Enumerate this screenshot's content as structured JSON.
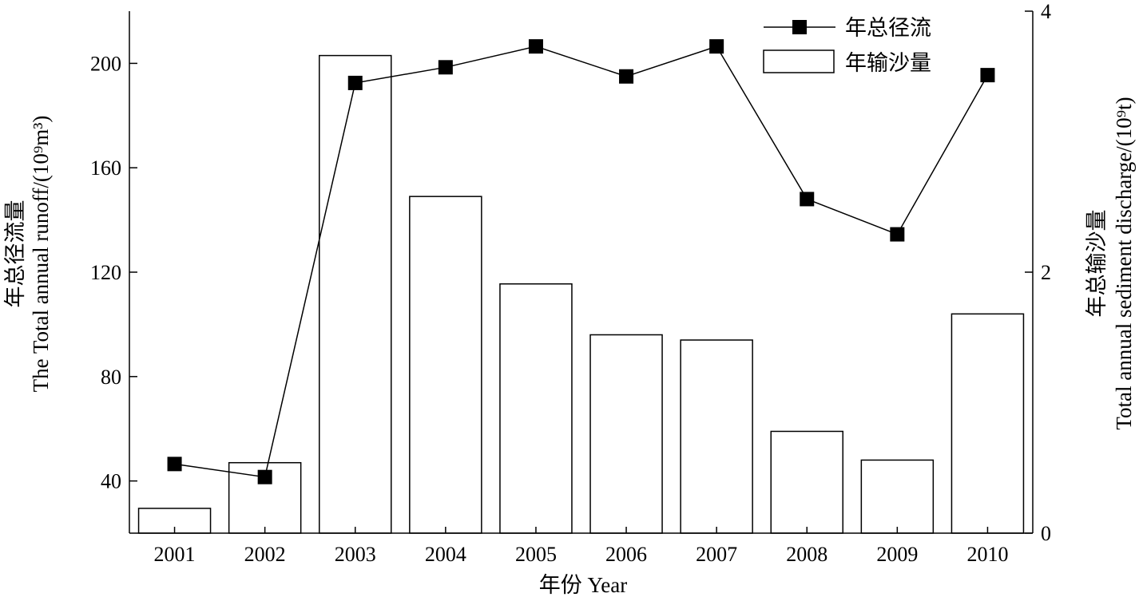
{
  "chart_data": {
    "type": "bar",
    "categories": [
      "2001",
      "2002",
      "2003",
      "2004",
      "2005",
      "2006",
      "2007",
      "2008",
      "2009",
      "2010"
    ],
    "xlabel": "年份 Year",
    "ylabel_left": "年总径流量 The Total annual runoff/(10⁹m³)",
    "ylabel_left_lines": [
      "年总径流量",
      "The Total annual runoff/(10⁹m³)"
    ],
    "ylabel_right": "年总输沙量 Total annual sediment discharge/(10⁹t)",
    "ylabel_right_lines": [
      "年总输沙量",
      "Total annual sediment discharge/(10⁹t)"
    ],
    "ylim_left": [
      20,
      220
    ],
    "yticks_left": [
      40,
      80,
      120,
      160,
      200
    ],
    "ylim_right": [
      0,
      4
    ],
    "yticks_right": [
      0,
      2,
      4
    ],
    "grid": false,
    "legend_position": "top-right",
    "series": [
      {
        "name": "年总径流",
        "kind": "line",
        "marker": "square",
        "axis": "left",
        "color": "#000000",
        "values": [
          46.5,
          41.5,
          192.5,
          198.5,
          206.5,
          195,
          206.5,
          148,
          134.5,
          195.5
        ]
      },
      {
        "name": "年输沙量",
        "kind": "bar",
        "axis": "right",
        "fill": "#ffffff",
        "stroke": "#000000",
        "values": [
          0.19,
          0.54,
          3.66,
          2.58,
          1.91,
          1.52,
          1.48,
          0.78,
          0.56,
          1.68
        ]
      }
    ]
  }
}
